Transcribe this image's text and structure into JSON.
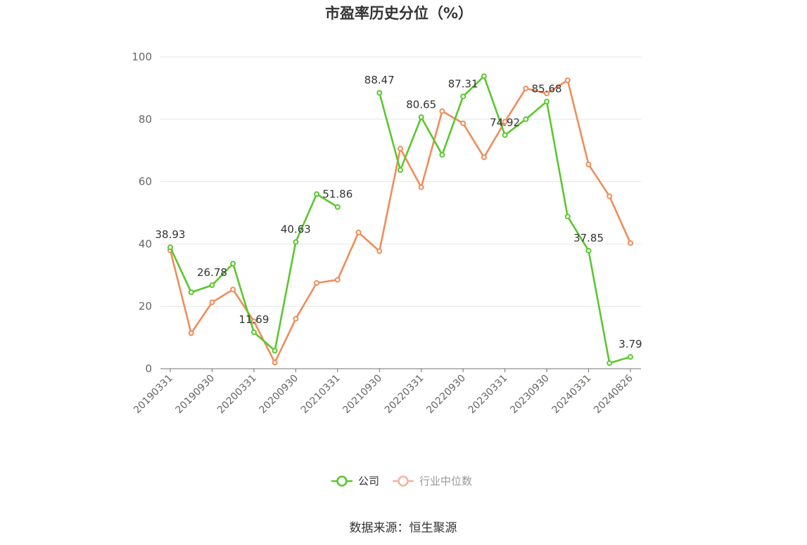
{
  "chart_data": {
    "type": "line",
    "title": "市盈率历史分位（%）",
    "ylim": [
      0,
      100
    ],
    "yticks": [
      0,
      20,
      40,
      60,
      80,
      100
    ],
    "grid": true,
    "legend_position": "bottom",
    "x": [
      "20190331",
      "20190630",
      "20190930",
      "20191231",
      "20200331",
      "20200630",
      "20200930",
      "20201231",
      "20210331",
      "20210630",
      "20210930",
      "20211231",
      "20220331",
      "20220630",
      "20220930",
      "20221231",
      "20230331",
      "20230630",
      "20230930",
      "20231231",
      "20240331",
      "20240630",
      "20240826"
    ],
    "xtick_labels": [
      "20190331",
      "20190930",
      "20200331",
      "20200930",
      "20210331",
      "20210930",
      "20220331",
      "20220930",
      "20230331",
      "20230930",
      "20240331",
      "20240826"
    ],
    "series": [
      {
        "name": "公司",
        "color": "#5ac72e",
        "values": [
          38.93,
          24.5,
          26.78,
          33.7,
          11.69,
          5.8,
          40.63,
          56.0,
          51.86,
          null,
          88.47,
          63.7,
          80.65,
          68.6,
          87.31,
          93.8,
          74.92,
          80.0,
          85.68,
          48.8,
          37.85,
          1.8,
          3.79
        ],
        "labels": {
          "0": "38.93",
          "2": "26.78",
          "4": "11.69",
          "6": "40.63",
          "8": "51.86",
          "10": "88.47",
          "12": "80.65",
          "14": "87.31",
          "16": "74.92",
          "18": "85.68",
          "20": "37.85",
          "22": "3.79"
        }
      },
      {
        "name": "行业中位数",
        "color": "#f08c5a",
        "values": [
          38.0,
          11.4,
          21.3,
          25.4,
          15.2,
          2.0,
          16.0,
          27.5,
          28.5,
          43.7,
          37.7,
          70.6,
          58.2,
          82.6,
          78.7,
          67.8,
          79.2,
          89.9,
          88.3,
          92.5,
          65.5,
          55.3,
          40.3
        ]
      }
    ]
  },
  "legend": [
    {
      "label": "公司",
      "color": "#5ac72e"
    },
    {
      "label": "行业中位数",
      "color": "#f5b49a"
    }
  ],
  "source": "数据来源：恒生聚源"
}
